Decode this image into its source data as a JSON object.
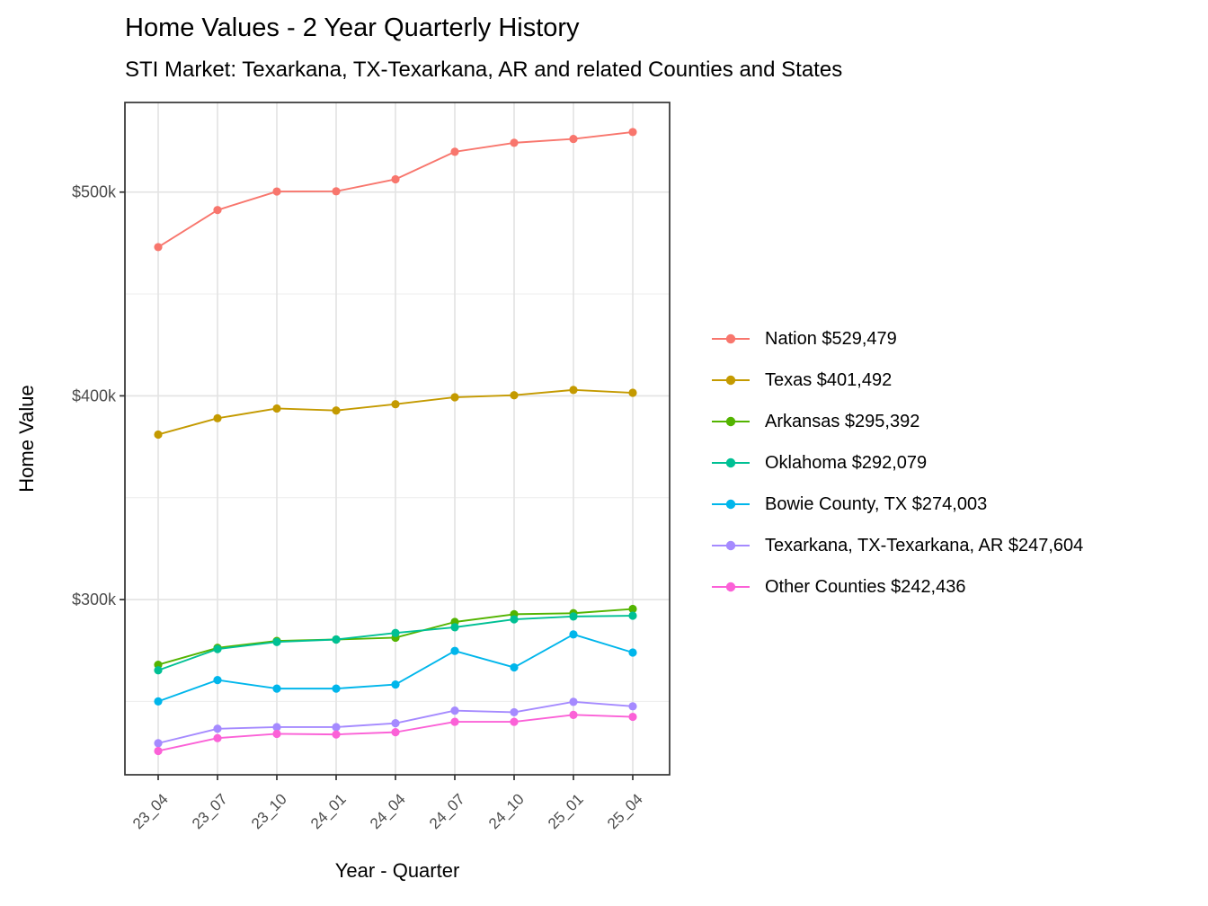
{
  "chart_data": {
    "type": "line",
    "title": "Home Values - 2 Year Quarterly History",
    "subtitle": "STI Market: Texarkana, TX-Texarkana, AR and related Counties and States",
    "xlabel": "Year - Quarter",
    "ylabel": "Home Value",
    "categories": [
      "23_04",
      "23_07",
      "23_10",
      "24_01",
      "24_04",
      "24_07",
      "24_10",
      "25_01",
      "25_04"
    ],
    "y_ticks": [
      {
        "value": 300000,
        "label": "$300k"
      },
      {
        "value": 400000,
        "label": "$400k"
      },
      {
        "value": 500000,
        "label": "$500k"
      }
    ],
    "y_minor": [
      250000,
      350000,
      450000
    ],
    "ylim": [
      214000,
      544000
    ],
    "grid": true,
    "legend_position": "right",
    "marker": "circle",
    "series": [
      {
        "name": "Nation",
        "legend_label": "Nation $529,479",
        "final_value": 529479,
        "color": "#F8766D",
        "values": [
          473000,
          491200,
          500300,
          500400,
          506300,
          519800,
          524200,
          526100,
          529479
        ]
      },
      {
        "name": "Texas",
        "legend_label": "Texas $401,492",
        "final_value": 401492,
        "color": "#C49A00",
        "values": [
          381000,
          389000,
          393800,
          392800,
          395900,
          399300,
          400300,
          402900,
          401492
        ]
      },
      {
        "name": "Arkansas",
        "legend_label": "Arkansas $295,392",
        "final_value": 295392,
        "color": "#53B400",
        "values": [
          268000,
          276300,
          279700,
          280400,
          281300,
          289000,
          292800,
          293300,
          295392
        ]
      },
      {
        "name": "Oklahoma",
        "legend_label": "Oklahoma $292,079",
        "final_value": 292079,
        "color": "#00C094",
        "values": [
          265300,
          275700,
          279200,
          280400,
          283600,
          286400,
          290300,
          291700,
          292079
        ]
      },
      {
        "name": "Bowie County, TX",
        "legend_label": "Bowie County, TX $274,003",
        "final_value": 274003,
        "color": "#00B6EB",
        "values": [
          250000,
          260500,
          256300,
          256300,
          258300,
          274800,
          266700,
          282900,
          274003
        ]
      },
      {
        "name": "Texarkana, TX-Texarkana, AR",
        "legend_label": "Texarkana, TX-Texarkana, AR $247,604",
        "final_value": 247604,
        "color": "#A58AFF",
        "values": [
          229500,
          236600,
          237400,
          237400,
          239300,
          245500,
          244700,
          249800,
          247604
        ]
      },
      {
        "name": "Other Counties",
        "legend_label": "Other Counties $242,436",
        "final_value": 242436,
        "color": "#FB61D7",
        "values": [
          225700,
          232000,
          234100,
          233800,
          234900,
          240000,
          240000,
          243400,
          242436
        ]
      }
    ]
  },
  "style": {
    "background": "#FFFFFF",
    "axis_text_color": "#4D4D4D",
    "axis_title_color": "#000000",
    "panel_border_color": "#333333",
    "grid_major_color": "#E3E3E3",
    "grid_minor_color": "#EFEFEF"
  }
}
